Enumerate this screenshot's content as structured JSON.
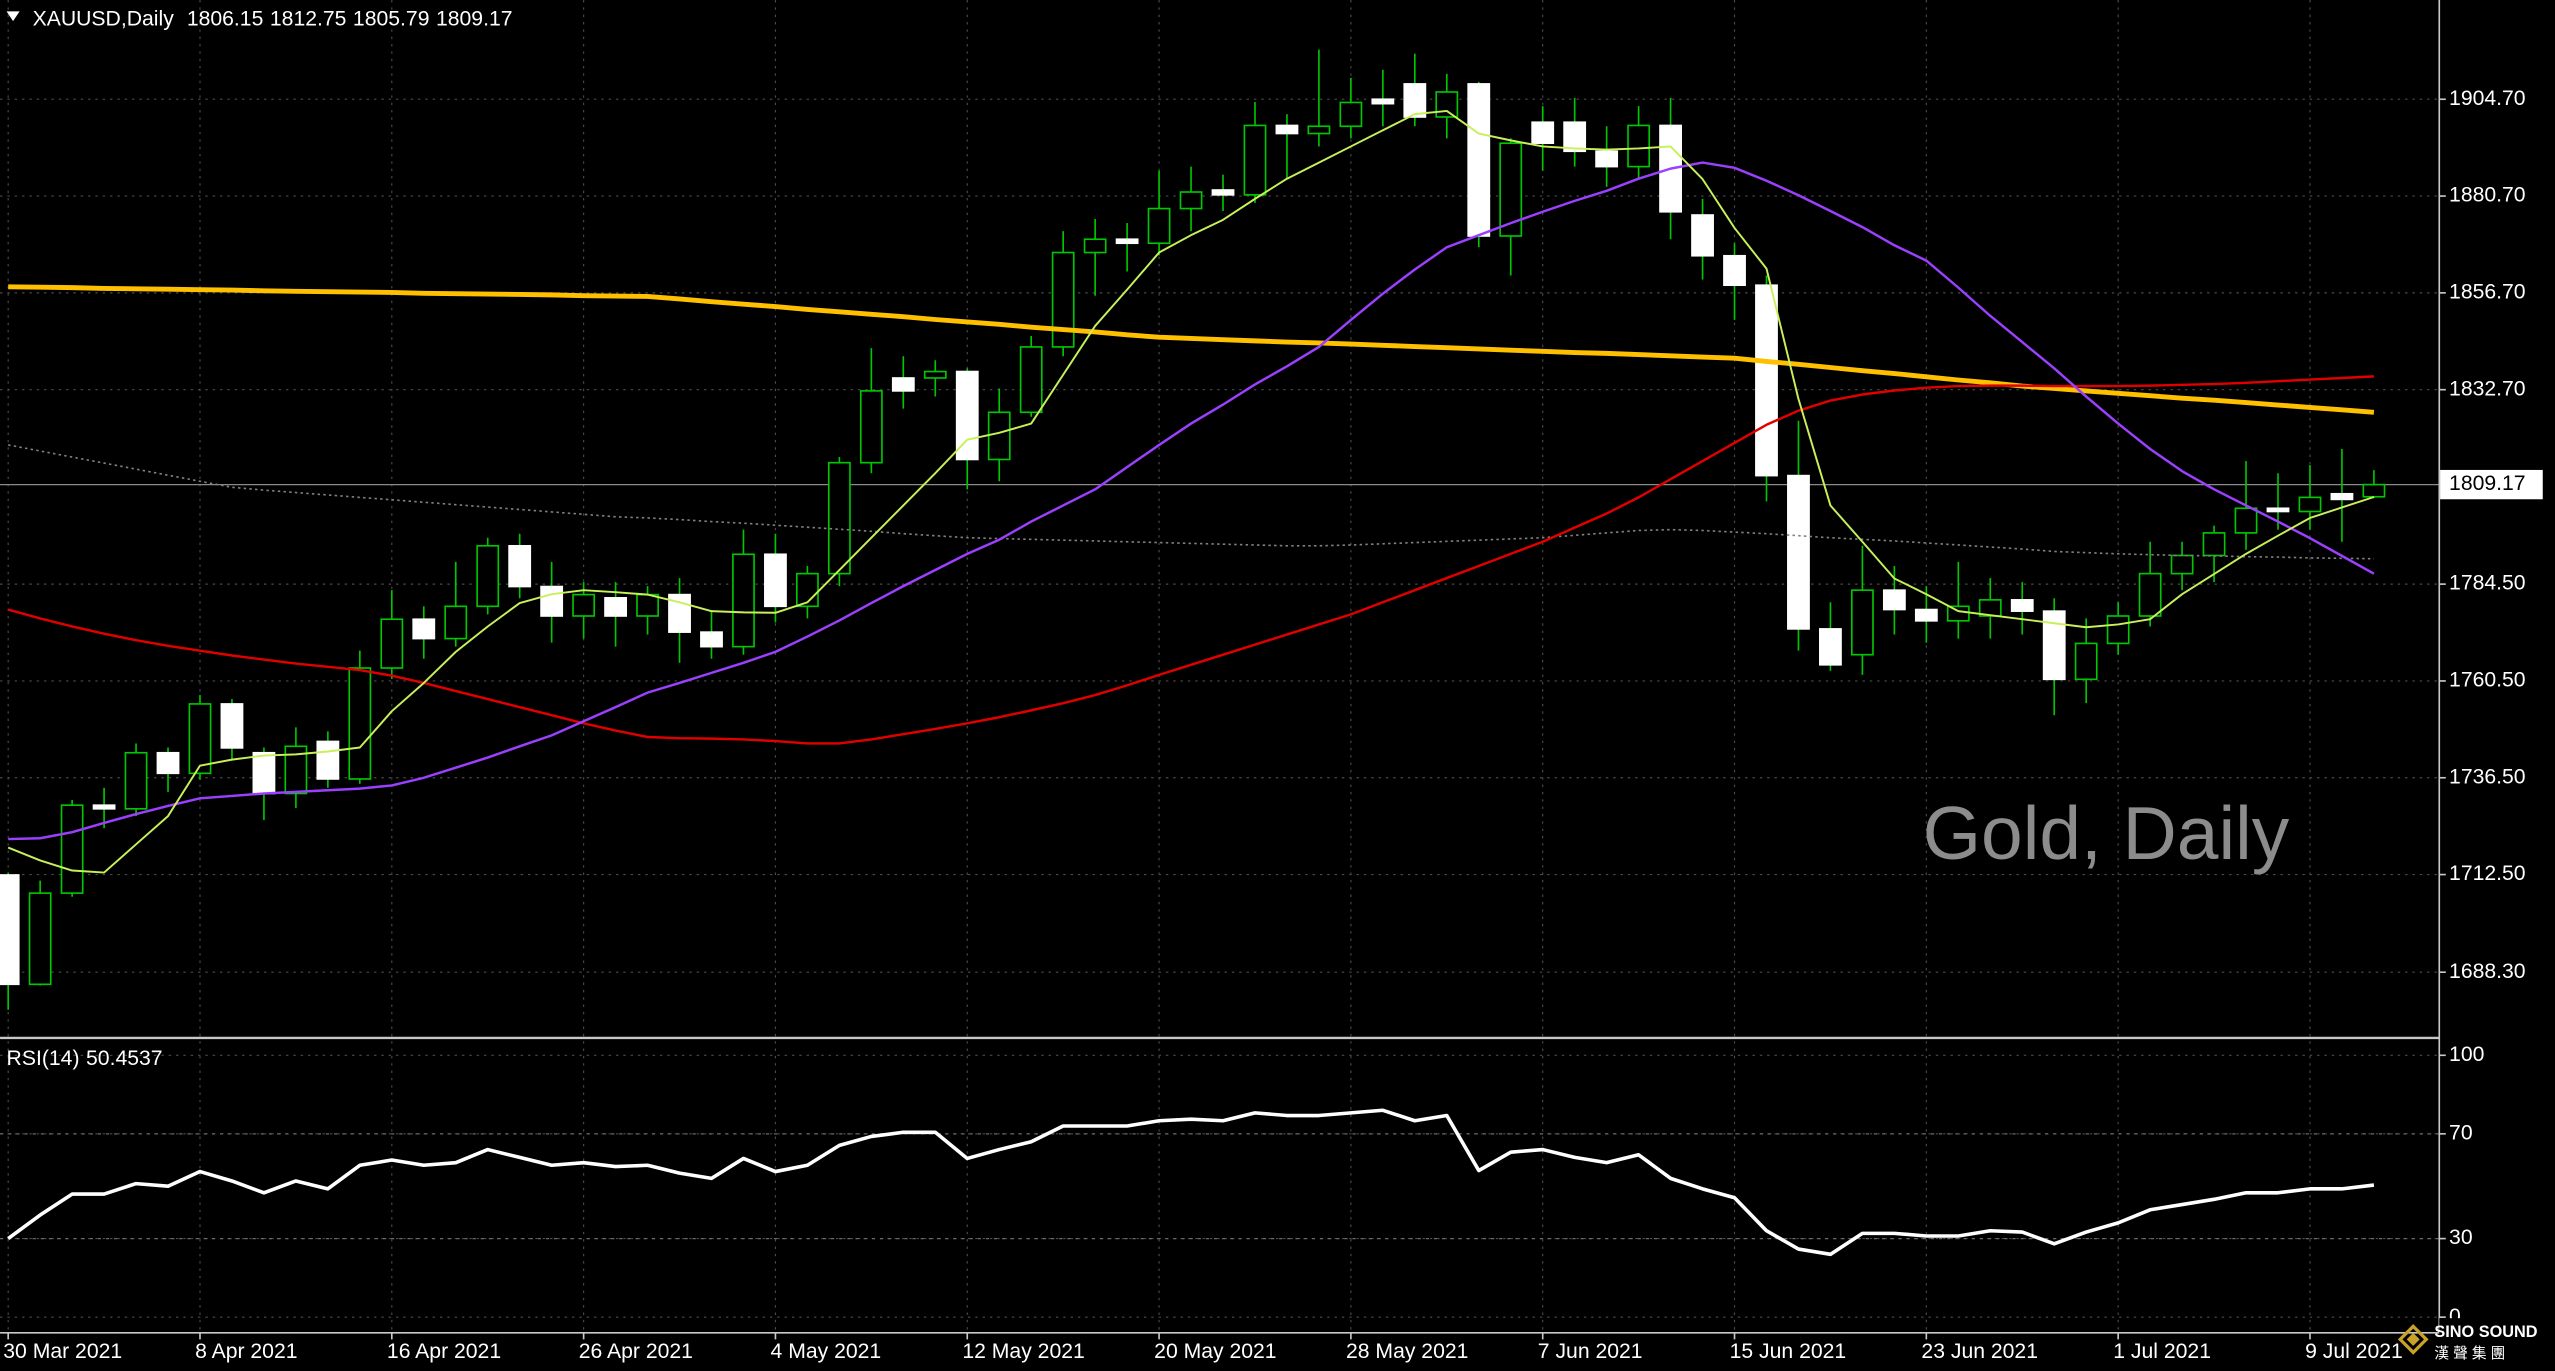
{
  "chart_data": [
    {
      "type": "candlestick",
      "symbol": "XAUUSD,Daily",
      "watermark": "Gold, Daily",
      "categories": [
        "30 Mar 2021",
        null,
        null,
        null,
        null,
        null,
        "8 Apr 2021",
        null,
        null,
        null,
        null,
        null,
        "16 Apr 2021",
        null,
        null,
        null,
        null,
        null,
        "26 Apr 2021",
        null,
        null,
        null,
        null,
        null,
        "4 May 2021",
        null,
        null,
        null,
        null,
        null,
        "12 May 2021",
        null,
        null,
        null,
        null,
        null,
        "20 May 2021",
        null,
        null,
        null,
        null,
        null,
        "28 May 2021",
        null,
        null,
        null,
        null,
        null,
        "7 Jun 2021",
        null,
        null,
        null,
        null,
        null,
        "15 Jun 2021",
        null,
        null,
        null,
        null,
        null,
        "23 Jun 2021",
        null,
        null,
        null,
        null,
        null,
        "1 Jul 2021",
        null,
        null,
        null,
        null,
        null,
        "9 Jul 2021",
        null,
        null
      ],
      "open": [
        1712.4,
        1685.3,
        1707.9,
        1729.7,
        1728.8,
        1742.7,
        1737.6,
        1754.8,
        1742.7,
        1732.6,
        1745.5,
        1736.2,
        1763.7,
        1775.8,
        1771.0,
        1779.0,
        1794.0,
        1783.9,
        1776.6,
        1781.1,
        1776.6,
        1781.9,
        1772.6,
        1769.0,
        1791.9,
        1779.0,
        1787.1,
        1814.6,
        1835.6,
        1835.6,
        1837.2,
        1815.4,
        1827.1,
        1843.3,
        1866.7,
        1870.0,
        1869.0,
        1877.6,
        1882.2,
        1881.0,
        1898.2,
        1896.2,
        1898.0,
        1904.7,
        1908.5,
        1900.3,
        1908.5,
        1870.8,
        1899.0,
        1899.0,
        1891.8,
        1888.0,
        1898.2,
        1876.0,
        1865.9,
        1858.6,
        1811.4,
        1773.4,
        1767.0,
        1783.0,
        1778.2,
        1775.4,
        1776.6,
        1780.6,
        1777.8,
        1760.9,
        1769.8,
        1776.6,
        1787.1,
        1791.6,
        1797.2,
        1803.3,
        1802.5,
        1806.9,
        1806.15
      ],
      "high": [
        1713,
        1711,
        1731,
        1734,
        1745,
        1744,
        1757,
        1756,
        1744,
        1749,
        1748,
        1768,
        1783,
        1779,
        1790,
        1796,
        1797,
        1790,
        1785,
        1785,
        1784,
        1786,
        1778,
        1798,
        1797,
        1789,
        1816,
        1843,
        1841,
        1840,
        1838,
        1833,
        1846,
        1872,
        1875,
        1874,
        1887,
        1888,
        1886,
        1904,
        1901,
        1917,
        1910,
        1912,
        1916,
        1911,
        1909,
        1895,
        1903,
        1905,
        1898,
        1903,
        1905,
        1880,
        1869,
        1861,
        1825,
        1780,
        1794,
        1789,
        1784,
        1790,
        1786,
        1785,
        1781,
        1776,
        1780,
        1795,
        1795,
        1799,
        1815,
        1812,
        1814,
        1818,
        1812.75
      ],
      "low": [
        1679,
        1685,
        1707,
        1724,
        1727,
        1733,
        1736,
        1741,
        1726,
        1729,
        1734,
        1735,
        1761,
        1766,
        1769,
        1777,
        1781,
        1770,
        1771,
        1769,
        1772,
        1765,
        1766,
        1767,
        1775,
        1776,
        1784,
        1812,
        1828,
        1831,
        1808,
        1810,
        1826,
        1841,
        1856,
        1862,
        1866,
        1872,
        1877,
        1879,
        1885,
        1893,
        1895,
        1898,
        1898,
        1895,
        1868,
        1861,
        1887,
        1888,
        1883,
        1885,
        1870,
        1860,
        1850,
        1805,
        1768,
        1763,
        1762,
        1772,
        1770,
        1771,
        1771,
        1772,
        1752,
        1755,
        1767,
        1774,
        1783,
        1785,
        1793,
        1798,
        1798,
        1795,
        1805.79
      ],
      "close": [
        1685.3,
        1707.9,
        1729.7,
        1728.8,
        1742.7,
        1737.6,
        1754.8,
        1743.9,
        1732.6,
        1744.3,
        1736.2,
        1763.7,
        1775.8,
        1771.0,
        1779.0,
        1794.0,
        1783.9,
        1776.6,
        1781.9,
        1776.6,
        1781.9,
        1772.6,
        1769.0,
        1791.9,
        1779.0,
        1787.1,
        1814.6,
        1832.4,
        1832.4,
        1837.2,
        1815.4,
        1827.1,
        1843.3,
        1866.7,
        1870.0,
        1869.0,
        1877.6,
        1881.7,
        1881.0,
        1898.2,
        1896.2,
        1898.0,
        1903.9,
        1903.6,
        1900.3,
        1906.5,
        1870.8,
        1893.8,
        1893.8,
        1891.8,
        1888.0,
        1898.2,
        1876.8,
        1865.9,
        1858.6,
        1811.4,
        1773.4,
        1764.5,
        1783.0,
        1778.2,
        1775.4,
        1779.0,
        1780.6,
        1777.8,
        1760.9,
        1769.8,
        1776.6,
        1787.1,
        1791.6,
        1797.2,
        1803.3,
        1802.5,
        1806.0,
        1805.5,
        1809.17
      ],
      "up_color": "#00c800",
      "down_color": "#ffffff",
      "series": [
        {
          "color": "#808080",
          "style": "dotted",
          "width": 1,
          "values": [
            1819.0,
            1817.5,
            1816.0,
            1814.5,
            1813.0,
            1811.5,
            1810.0,
            1808.5,
            1807.8,
            1807.2,
            1806.6,
            1806.0,
            1805.4,
            1804.8,
            1804.2,
            1803.6,
            1803.0,
            1802.4,
            1801.8,
            1801.2,
            1800.9,
            1800.5,
            1800.0,
            1799.6,
            1799.1,
            1798.6,
            1798.1,
            1797.6,
            1797.0,
            1796.5,
            1796.0,
            1795.8,
            1795.6,
            1795.4,
            1795.2,
            1795.0,
            1794.8,
            1794.6,
            1794.4,
            1794.2,
            1794.0,
            1794.0,
            1794.2,
            1794.5,
            1794.8,
            1795.1,
            1795.4,
            1795.7,
            1796.0,
            1796.6,
            1797.2,
            1797.8,
            1798.0,
            1797.8,
            1797.4,
            1797.0,
            1796.5,
            1796.0,
            1795.6,
            1795.2,
            1794.7,
            1794.2,
            1793.7,
            1793.2,
            1792.6,
            1792.3,
            1792.0,
            1791.8,
            1791.6,
            1791.5,
            1791.3,
            1791.2,
            1791.0,
            1790.9,
            1790.8
          ]
        },
        {
          "color": "#ffc000",
          "style": "solid",
          "width": 3,
          "values": [
            1858.2,
            1858.1,
            1858.0,
            1857.8,
            1857.7,
            1857.6,
            1857.5,
            1857.4,
            1857.2,
            1857.1,
            1857.0,
            1856.9,
            1856.8,
            1856.6,
            1856.5,
            1856.4,
            1856.3,
            1856.2,
            1856.0,
            1855.9,
            1855.8,
            1855.2,
            1854.5,
            1853.9,
            1853.3,
            1852.6,
            1852.0,
            1851.4,
            1850.8,
            1850.1,
            1849.5,
            1848.9,
            1848.2,
            1847.6,
            1847.0,
            1846.3,
            1845.7,
            1845.4,
            1845.1,
            1844.8,
            1844.5,
            1844.3,
            1844.0,
            1843.7,
            1843.4,
            1843.1,
            1842.8,
            1842.5,
            1842.2,
            1841.9,
            1841.7,
            1841.4,
            1841.1,
            1840.8,
            1840.5,
            1839.7,
            1839.0,
            1838.2,
            1837.4,
            1836.7,
            1835.9,
            1835.1,
            1834.4,
            1833.6,
            1833.0,
            1832.4,
            1831.8,
            1831.2,
            1830.6,
            1830.1,
            1829.5,
            1828.9,
            1828.3,
            1827.7,
            1827.1
          ]
        },
        {
          "color": "#e00000",
          "style": "solid",
          "width": 1.5,
          "values": [
            1778.2,
            1776.0,
            1774.0,
            1772.2,
            1770.6,
            1769.2,
            1768.0,
            1766.8,
            1765.8,
            1764.8,
            1764.0,
            1763.2,
            1761.8,
            1760.0,
            1758.0,
            1756.0,
            1754.0,
            1752.0,
            1750.0,
            1748.2,
            1746.6,
            1746.3,
            1746.2,
            1746.0,
            1745.6,
            1745.0,
            1745.0,
            1746.0,
            1747.3,
            1748.6,
            1750.0,
            1751.5,
            1753.2,
            1755.0,
            1757.0,
            1759.4,
            1762.0,
            1764.5,
            1767.0,
            1769.5,
            1772.0,
            1774.5,
            1777.0,
            1780.0,
            1783.0,
            1786.0,
            1789.0,
            1792.0,
            1795.0,
            1798.5,
            1802.0,
            1806.0,
            1810.5,
            1815.0,
            1819.5,
            1824.0,
            1827.5,
            1830.0,
            1831.5,
            1832.5,
            1833.2,
            1833.6,
            1833.7,
            1833.7,
            1833.6,
            1833.6,
            1833.6,
            1833.7,
            1833.9,
            1834.1,
            1834.4,
            1834.8,
            1835.2,
            1835.6,
            1836.0
          ]
        },
        {
          "color": "#9b40ff",
          "style": "solid",
          "width": 1.5,
          "values": [
            1721.3,
            1721.5,
            1723.0,
            1725.3,
            1727.5,
            1729.5,
            1731.4,
            1732.0,
            1732.6,
            1733.0,
            1733.4,
            1733.8,
            1734.6,
            1736.5,
            1739.0,
            1741.5,
            1744.3,
            1747.0,
            1750.5,
            1754.0,
            1757.6,
            1760.0,
            1762.5,
            1765.0,
            1767.7,
            1771.5,
            1775.5,
            1779.8,
            1784.0,
            1788.0,
            1792.0,
            1795.5,
            1800.0,
            1804.0,
            1808.0,
            1813.5,
            1819.0,
            1824.3,
            1829.0,
            1834.0,
            1838.5,
            1843.3,
            1850.0,
            1856.5,
            1862.5,
            1868.0,
            1871.0,
            1874.0,
            1876.8,
            1879.5,
            1882.0,
            1885.0,
            1887.5,
            1889.0,
            1887.7,
            1884.5,
            1880.9,
            1877.0,
            1873.0,
            1868.5,
            1864.7,
            1858.0,
            1851.0,
            1844.5,
            1838.0,
            1831.0,
            1824.3,
            1818.0,
            1812.5,
            1808.0,
            1804.0,
            1800.0,
            1795.9,
            1791.5,
            1787.1
          ]
        },
        {
          "color": "#c8f05a",
          "style": "solid",
          "width": 1.2,
          "values": [
            1719.2,
            1716.0,
            1713.5,
            1713.0,
            1720.0,
            1727.0,
            1739.5,
            1741.0,
            1742.0,
            1742.3,
            1743.0,
            1744.0,
            1753.0,
            1760.0,
            1767.7,
            1774.0,
            1779.8,
            1782.0,
            1783.0,
            1782.5,
            1781.9,
            1780.0,
            1777.8,
            1777.5,
            1777.4,
            1780.0,
            1788.0,
            1796.0,
            1804.0,
            1812.0,
            1820.3,
            1822.0,
            1824.3,
            1836.4,
            1848.5,
            1857.5,
            1866.7,
            1871.0,
            1874.8,
            1880.0,
            1885.0,
            1889.0,
            1893.0,
            1897.0,
            1901.0,
            1901.8,
            1896.2,
            1894.5,
            1893.0,
            1892.5,
            1892.2,
            1892.5,
            1893.0,
            1884.9,
            1872.8,
            1862.7,
            1830.4,
            1804.0,
            1795.0,
            1785.9,
            1782.0,
            1777.8,
            1776.8,
            1775.8,
            1774.8,
            1773.8,
            1774.5,
            1775.8,
            1782.0,
            1787.0,
            1792.0,
            1796.5,
            1800.9,
            1803.5,
            1806.1
          ]
        }
      ],
      "ylim": [
        1672.0,
        1929.3
      ],
      "yticks": [
        {
          "value": 1904.7,
          "label": "1904.70"
        },
        {
          "value": 1880.7,
          "label": "1880.70"
        },
        {
          "value": 1856.7,
          "label": "1856.70"
        },
        {
          "value": 1832.7,
          "label": "1832.70"
        },
        {
          "value": 1784.5,
          "label": "1784.50"
        },
        {
          "value": 1760.5,
          "label": "1760.50"
        },
        {
          "value": 1736.5,
          "label": "1736.50"
        },
        {
          "value": 1712.5,
          "label": "1712.50"
        },
        {
          "value": 1688.3,
          "label": "1688.30"
        }
      ],
      "grid": true
    },
    {
      "type": "line",
      "title": "RSI(14)",
      "color": "#ffffff",
      "values": [
        30,
        39,
        47,
        47,
        51,
        50,
        55.6,
        52,
        47.5,
        52,
        49,
        58,
        60,
        58,
        59,
        64,
        61,
        58,
        59,
        57.5,
        58,
        55,
        53,
        60.6,
        55.6,
        58,
        65.6,
        69,
        70.6,
        70.6,
        60.6,
        64,
        67,
        73,
        73,
        73,
        75,
        75.6,
        75,
        78,
        77,
        77,
        78,
        79,
        75,
        77,
        56,
        63,
        64,
        61,
        59,
        62,
        53,
        49,
        45.6,
        33,
        26,
        24,
        32,
        32,
        31,
        31,
        33,
        32.5,
        28,
        32.5,
        36,
        41,
        43,
        45,
        47.5,
        47.5,
        49,
        49,
        50.4537
      ],
      "ylim": [
        -6,
        106
      ],
      "yticks": [
        100,
        70,
        30,
        0
      ],
      "levels": [
        70,
        30
      ],
      "grid": true
    }
  ],
  "logo": {
    "name": "SINO SOUND",
    "subtitle": "漢 聲 集 團"
  }
}
